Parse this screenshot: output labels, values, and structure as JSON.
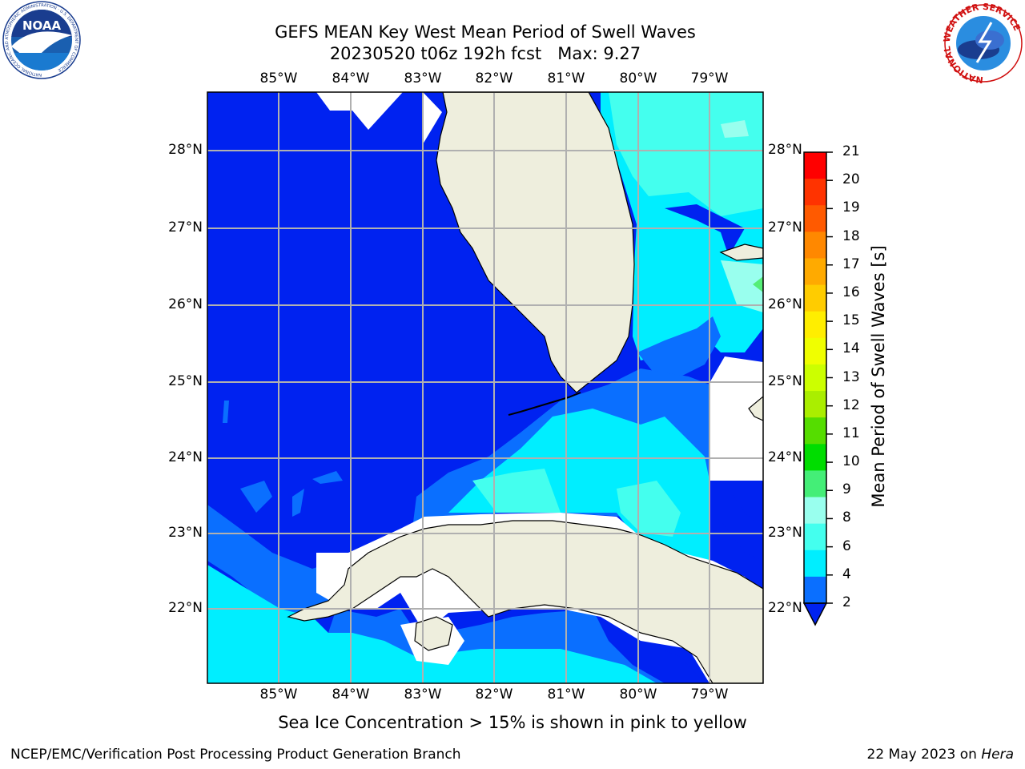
{
  "title": {
    "line1": "GEFS MEAN Key West Mean Period of Swell Waves",
    "line2": "20230520 t06z 192h fcst   Max: 9.27"
  },
  "map": {
    "lon_labels": [
      "85°W",
      "84°W",
      "83°W",
      "82°W",
      "81°W",
      "80°W",
      "79°W"
    ],
    "lat_labels": [
      "28°N",
      "27°N",
      "26°N",
      "25°N",
      "24°N",
      "23°N",
      "22°N"
    ],
    "colors": {
      "land": "#eeeedd",
      "band_2_4": "#0022f0",
      "band_4_6": "#0a6fff",
      "band_6_8": "#00eeff",
      "band_8_9": "#44ffee",
      "band_9_10": "#99ffee",
      "band_10_11": "#55ee77",
      "grid": "#b0b0b0"
    }
  },
  "colorbar": {
    "label": "Mean Period of Swell Waves [s]",
    "ticks": [
      "21",
      "20",
      "19",
      "18",
      "17",
      "16",
      "15",
      "14",
      "13",
      "12",
      "11",
      "10",
      "9",
      "8",
      "6",
      "4",
      "2"
    ],
    "colors": [
      "#ff0000",
      "#ff3300",
      "#ff5a00",
      "#ff8800",
      "#ffaa00",
      "#ffcc00",
      "#ffee00",
      "#f0ff00",
      "#ccff00",
      "#aaee00",
      "#55dd00",
      "#00dd00",
      "#44ee77",
      "#99ffee",
      "#44ffee",
      "#00eeff",
      "#0a6fff",
      "#0022f0"
    ]
  },
  "logos": {
    "left": {
      "text": "NOAA",
      "icon": "noaa-logo-icon",
      "ring_text": "NATIONAL OCEANIC AND ATMOSPHERIC ADMINISTRATION · U.S. DEPARTMENT OF COMMERCE"
    },
    "right": {
      "icon": "nws-logo-icon",
      "ring_text": "NATIONAL WEATHER SERVICE"
    }
  },
  "note": "Sea Ice Concentration > 15% is shown in pink to yellow",
  "footer": {
    "left": "NCEP/EMC/Verification Post Processing Product Generation Branch",
    "right_date": "22 May 2023 on ",
    "right_host": "Hera"
  }
}
